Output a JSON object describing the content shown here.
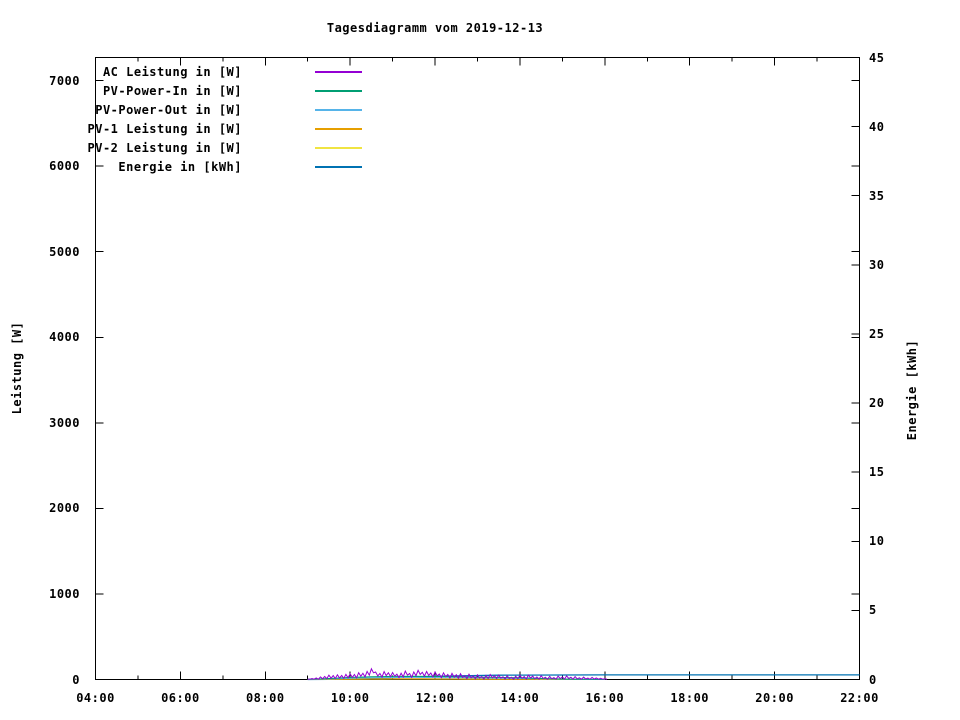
{
  "chart_data": {
    "type": "line",
    "title": "Tagesdiagramm vom 2019-12-13",
    "xlabel": "",
    "ylabel": "Leistung [W]",
    "y2label": "Energie [kWh]",
    "background": "#FFFFFF",
    "text_color": "#000000",
    "grid": false,
    "legend_position": "top-left-inside",
    "x_range_hours": [
      4,
      22
    ],
    "ylim": [
      0,
      7270
    ],
    "y2lim": [
      0,
      45
    ],
    "x_ticks": [
      {
        "t": 4,
        "label": "04:00"
      },
      {
        "t": 6,
        "label": "06:00"
      },
      {
        "t": 8,
        "label": "08:00"
      },
      {
        "t": 10,
        "label": "10:00"
      },
      {
        "t": 12,
        "label": "12:00"
      },
      {
        "t": 14,
        "label": "14:00"
      },
      {
        "t": 16,
        "label": "16:00"
      },
      {
        "t": 18,
        "label": "18:00"
      },
      {
        "t": 20,
        "label": "20:00"
      },
      {
        "t": 22,
        "label": "22:00"
      }
    ],
    "x_minor_hours": [
      5,
      7,
      9,
      11,
      13,
      15,
      17,
      19,
      21
    ],
    "y_ticks": [
      {
        "v": 0,
        "label": "0"
      },
      {
        "v": 1000,
        "label": "1000"
      },
      {
        "v": 2000,
        "label": "2000"
      },
      {
        "v": 3000,
        "label": "3000"
      },
      {
        "v": 4000,
        "label": "4000"
      },
      {
        "v": 5000,
        "label": "5000"
      },
      {
        "v": 6000,
        "label": "6000"
      },
      {
        "v": 7000,
        "label": "7000"
      }
    ],
    "y2_ticks": [
      {
        "v": 0,
        "label": "0"
      },
      {
        "v": 5,
        "label": "5"
      },
      {
        "v": 10,
        "label": "10"
      },
      {
        "v": 15,
        "label": "15"
      },
      {
        "v": 20,
        "label": "20"
      },
      {
        "v": 25,
        "label": "25"
      },
      {
        "v": 30,
        "label": "30"
      },
      {
        "v": 35,
        "label": "35"
      },
      {
        "v": 40,
        "label": "40"
      },
      {
        "v": 45,
        "label": "45"
      }
    ],
    "series": [
      {
        "name": "AC Leistung in [W]",
        "color": "#9400D3",
        "axis": "y1",
        "t0": 9.0,
        "dt": 0.05,
        "values": [
          5,
          2,
          12,
          3,
          18,
          4,
          30,
          8,
          35,
          10,
          50,
          15,
          45,
          12,
          55,
          18,
          48,
          14,
          60,
          20,
          65,
          25,
          58,
          20,
          80,
          38,
          72,
          30,
          95,
          50,
          125,
          78,
          88,
          42,
          70,
          28,
          92,
          46,
          78,
          34,
          82,
          38,
          62,
          22,
          74,
          30,
          98,
          52,
          70,
          26,
          88,
          44,
          108,
          60,
          84,
          40,
          94,
          48,
          76,
          32,
          88,
          42,
          64,
          22,
          78,
          34,
          60,
          18,
          72,
          28,
          56,
          14,
          68,
          24,
          46,
          10,
          62,
          20,
          42,
          8,
          54,
          16,
          36,
          6,
          48,
          12,
          58,
          20,
          44,
          10,
          52,
          16,
          32,
          5,
          44,
          10,
          26,
          4,
          38,
          8,
          48,
          14,
          34,
          6,
          52,
          18,
          40,
          8,
          30,
          5,
          44,
          12,
          26,
          4,
          36,
          8,
          22,
          3,
          38,
          10,
          30,
          5,
          42,
          12,
          26,
          4,
          34,
          8,
          20,
          3,
          28,
          6,
          16,
          2,
          24,
          5,
          18,
          3,
          14,
          4,
          8,
          2
        ]
      },
      {
        "name": "PV-Power-In in [W]",
        "color": "#009E73",
        "axis": "y1",
        "t0": 9.0,
        "dt": 0.25,
        "values": [
          2,
          6,
          12,
          18,
          24,
          28,
          32,
          34,
          36,
          36,
          38,
          36,
          35,
          34,
          32,
          30,
          28,
          26,
          24,
          22,
          20,
          16,
          12,
          9,
          6,
          4,
          2,
          1,
          0
        ]
      },
      {
        "name": "PV-Power-Out in [W]",
        "color": "#56B4E9",
        "axis": "y1",
        "t0": 9.0,
        "dt": 0.25,
        "values": [
          1,
          3,
          7,
          11,
          15,
          18,
          20,
          22,
          23,
          23,
          24,
          23,
          22,
          21,
          20,
          19,
          18,
          16,
          15,
          13,
          12,
          10,
          8,
          6,
          4,
          2,
          1,
          0,
          0
        ]
      },
      {
        "name": "PV-1 Leistung in [W]",
        "color": "#E69F00",
        "axis": "y1",
        "t0": 9.0,
        "dt": 0.25,
        "values": [
          0,
          1,
          2,
          4,
          5,
          6,
          7,
          8,
          8,
          8,
          8,
          8,
          7,
          7,
          6,
          6,
          5,
          5,
          4,
          4,
          3,
          3,
          2,
          2,
          1,
          1,
          0,
          0,
          0
        ]
      },
      {
        "name": "PV-2 Leistung in [W]",
        "color": "#F0E442",
        "axis": "y1",
        "t0": 9.0,
        "dt": 0.25,
        "values": [
          0,
          1,
          2,
          3,
          4,
          4,
          5,
          5,
          6,
          6,
          6,
          6,
          5,
          5,
          5,
          4,
          4,
          4,
          3,
          3,
          2,
          2,
          1,
          1,
          1,
          0,
          0,
          0,
          0
        ]
      },
      {
        "name": "Energie in [kWh]",
        "color": "#0072B2",
        "axis": "y2",
        "points": [
          [
            9,
            0
          ],
          [
            9.5,
            0.01
          ],
          [
            10,
            0.04
          ],
          [
            10.5,
            0.09
          ],
          [
            11,
            0.14
          ],
          [
            11.5,
            0.19
          ],
          [
            12,
            0.23
          ],
          [
            12.5,
            0.26
          ],
          [
            13,
            0.29
          ],
          [
            13.5,
            0.31
          ],
          [
            14,
            0.32
          ],
          [
            16,
            0.33
          ],
          [
            22,
            0.33
          ]
        ]
      }
    ]
  }
}
